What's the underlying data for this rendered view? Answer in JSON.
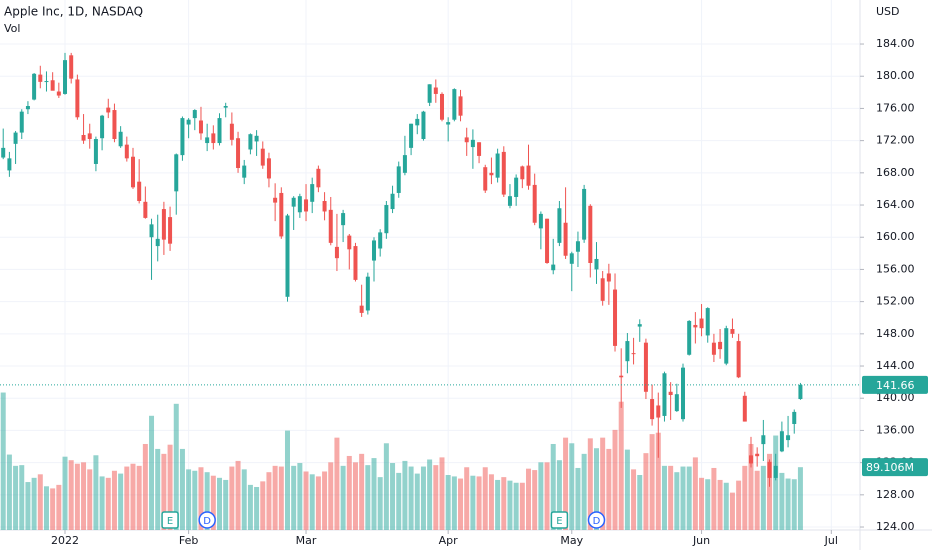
{
  "chart_data": {
    "type": "candlestick",
    "title": "Apple Inc, 1D, NASDAQ",
    "volume_title": "Vol",
    "currency": "USD",
    "open": [
      169.9,
      168.3,
      171.6,
      173.0,
      175.9,
      177.1,
      180.2,
      179.3,
      179.5,
      178.1,
      177.8,
      182.6,
      179.6,
      172.7,
      172.9,
      169.1,
      172.3,
      176.1,
      175.8,
      171.3,
      171.5,
      170.0,
      166.9,
      164.4,
      160.0,
      158.9,
      163.5,
      162.5,
      165.7,
      170.2,
      174.0,
      174.8,
      174.5,
      171.7,
      172.9,
      171.7,
      176.1,
      174.1,
      172.3,
      167.4,
      170.9,
      171.9,
      171.0,
      169.8,
      164.9,
      165.5,
      152.6,
      163.8,
      163.1,
      164.7,
      164.4,
      168.5,
      164.5,
      163.4,
      158.8,
      161.5,
      160.2,
      158.9,
      151.5,
      150.9,
      157.1,
      158.6,
      160.5,
      163.5,
      165.5,
      168.0,
      171.1,
      173.9,
      172.2,
      176.7,
      178.6,
      177.8,
      174.0,
      174.6,
      177.5,
      172.4,
      171.2,
      171.8,
      168.7,
      168.0,
      167.4,
      170.6,
      163.9,
      165.0,
      168.8,
      168.9,
      166.5,
      161.1,
      162.3,
      155.9,
      159.3,
      161.8,
      156.7,
      158.2,
      159.7,
      163.9,
      156.0,
      154.9,
      155.5,
      153.5,
      142.8,
      144.6,
      145.6,
      148.9,
      146.9,
      139.9,
      139.1,
      137.8,
      140.8,
      138.4,
      137.4,
      145.4,
      149.1,
      149.9,
      147.8,
      146.9,
      147.0,
      144.3,
      148.6,
      147.1,
      140.3,
      132.9,
      133.1,
      134.3,
      132.1,
      130.1,
      133.4,
      134.8,
      136.8,
      139.9
    ],
    "high": [
      173.5,
      170.6,
      173.2,
      175.9,
      176.9,
      180.4,
      181.3,
      180.6,
      180.5,
      179.2,
      182.9,
      182.9,
      180.2,
      175.3,
      174.1,
      172.5,
      175.2,
      177.2,
      176.6,
      173.8,
      172.5,
      171.1,
      169.7,
      166.3,
      162.3,
      162.8,
      164.4,
      163.8,
      170.4,
      175.0,
      174.8,
      175.9,
      176.2,
      174.1,
      173.9,
      175.4,
      176.7,
      175.5,
      173.1,
      169.6,
      172.9,
      173.3,
      171.9,
      170.5,
      166.7,
      166.2,
      162.9,
      165.1,
      165.4,
      166.6,
      167.4,
      168.9,
      165.6,
      165.0,
      162.9,
      163.4,
      160.4,
      159.3,
      154.1,
      155.6,
      160.0,
      161.0,
      164.5,
      166.4,
      169.4,
      172.6,
      174.1,
      175.3,
      175.7,
      179.0,
      179.6,
      178.0,
      174.9,
      178.5,
      178.3,
      173.6,
      173.4,
      171.8,
      169.0,
      169.9,
      171.0,
      171.3,
      166.6,
      167.8,
      168.9,
      171.5,
      167.9,
      163.2,
      162.3,
      159.8,
      164.5,
      166.2,
      158.2,
      160.7,
      166.5,
      164.1,
      159.4,
      155.8,
      156.7,
      155.5,
      146.2,
      148.1,
      147.5,
      149.8,
      147.4,
      141.7,
      140.7,
      143.3,
      142.0,
      141.8,
      144.3,
      149.7,
      150.7,
      151.7,
      151.3,
      148.0,
      148.6,
      149.0,
      149.9,
      148.0,
      140.8,
      135.2,
      133.9,
      137.3,
      132.4,
      133.1,
      137.1,
      137.8,
      138.6,
      141.9
    ],
    "low": [
      169.7,
      167.5,
      169.1,
      172.2,
      175.3,
      177.0,
      178.5,
      178.1,
      178.3,
      177.3,
      177.7,
      179.1,
      174.6,
      171.6,
      171.0,
      168.2,
      170.8,
      174.8,
      171.8,
      171.1,
      169.4,
      166.0,
      164.2,
      162.3,
      154.7,
      157.0,
      157.8,
      158.3,
      162.8,
      169.5,
      172.3,
      173.3,
      172.1,
      170.7,
      170.9,
      171.4,
      174.9,
      171.4,
      168.0,
      166.6,
      170.3,
      170.1,
      168.5,
      166.2,
      162.0,
      159.8,
      152.0,
      160.9,
      162.4,
      162.0,
      163.0,
      165.6,
      162.1,
      159.0,
      155.8,
      159.4,
      156.0,
      154.5,
      150.1,
      150.4,
      154.5,
      157.6,
      159.8,
      163.0,
      164.9,
      167.7,
      170.2,
      172.8,
      172.0,
      176.3,
      176.7,
      174.4,
      171.9,
      174.4,
      174.4,
      170.1,
      168.5,
      169.2,
      165.5,
      166.6,
      166.8,
      165.0,
      163.6,
      163.9,
      166.1,
      165.9,
      161.5,
      158.5,
      156.7,
      155.4,
      158.9,
      157.3,
      153.3,
      156.3,
      159.3,
      155.0,
      154.2,
      151.5,
      151.6,
      145.8,
      138.8,
      143.1,
      144.2,
      147.0,
      139.9,
      136.6,
      132.6,
      137.1,
      137.3,
      138.3,
      137.1,
      145.3,
      146.8,
      147.7,
      146.9,
      144.5,
      144.9,
      144.1,
      147.5,
      142.5,
      137.1,
      131.4,
      131.5,
      132.2,
      129.0,
      129.8,
      133.3,
      133.9,
      135.6,
      139.8
    ],
    "close": [
      171.1,
      169.8,
      173.0,
      175.6,
      176.3,
      180.3,
      179.3,
      179.4,
      178.2,
      177.6,
      182.0,
      179.7,
      174.9,
      172.0,
      172.2,
      172.2,
      175.1,
      175.5,
      172.2,
      173.1,
      169.8,
      166.2,
      164.5,
      162.4,
      161.6,
      159.8,
      159.7,
      159.2,
      170.3,
      174.8,
      174.6,
      175.8,
      172.9,
      172.4,
      171.7,
      174.8,
      176.3,
      172.1,
      168.6,
      168.9,
      172.8,
      172.6,
      168.9,
      167.3,
      164.3,
      160.1,
      162.7,
      164.9,
      165.1,
      163.2,
      166.6,
      166.2,
      163.2,
      159.3,
      157.4,
      163.0,
      158.5,
      154.7,
      150.6,
      155.1,
      159.6,
      160.6,
      164.0,
      165.4,
      168.8,
      170.2,
      174.1,
      174.7,
      175.6,
      179.0,
      177.8,
      174.6,
      174.3,
      178.4,
      175.1,
      171.8,
      172.1,
      170.1,
      165.8,
      167.7,
      170.4,
      165.3,
      165.1,
      167.4,
      167.2,
      166.4,
      161.8,
      162.9,
      156.8,
      156.6,
      163.6,
      157.7,
      158.0,
      159.5,
      166.0,
      156.8,
      157.3,
      152.1,
      154.5,
      146.5,
      142.6,
      147.1,
      145.5,
      149.2,
      140.8,
      137.4,
      137.6,
      143.1,
      140.4,
      140.5,
      143.8,
      149.6,
      148.8,
      148.7,
      151.2,
      145.4,
      146.1,
      148.7,
      148.0,
      142.6,
      137.1,
      131.9,
      132.8,
      135.4,
      130.1,
      131.6,
      135.9,
      135.4,
      138.3,
      141.66
    ],
    "volume": [
      195,
      107,
      91,
      92,
      68,
      74,
      79,
      62,
      59,
      64,
      104,
      99,
      94,
      96,
      86,
      106,
      76,
      74,
      84,
      80,
      90,
      94,
      91,
      122,
      162,
      115,
      108,
      121,
      179,
      115,
      86,
      84,
      89,
      82,
      77,
      74,
      71,
      90,
      98,
      86,
      64,
      61,
      69,
      82,
      91,
      90,
      141,
      91,
      95,
      83,
      79,
      76,
      83,
      96,
      131,
      91,
      105,
      96,
      108,
      92,
      102,
      75,
      123,
      95,
      81,
      98,
      90,
      80,
      90,
      100,
      92,
      103,
      78,
      76,
      73,
      89,
      77,
      76,
      89,
      79,
      71,
      75,
      70,
      67,
      67,
      87,
      85,
      96,
      96,
      122,
      99,
      131,
      123,
      88,
      108,
      130,
      116,
      131,
      115,
      142,
      182,
      114,
      86,
      78,
      109,
      136,
      138,
      91,
      91,
      82,
      90,
      90,
      103,
      74,
      72,
      88,
      71,
      67,
      53,
      70,
      91,
      122,
      84,
      91,
      108,
      134,
      81,
      73,
      72,
      89.106
    ],
    "volume_last_label": "89.106M",
    "up_color": "#26a69a",
    "down_color": "#ef5350",
    "xlim": [
      -0.52,
      138.64
    ],
    "xticks": [
      {
        "value": 10,
        "label": "2022"
      },
      {
        "value": 30,
        "label": "Feb"
      },
      {
        "value": 49,
        "label": "Mar"
      },
      {
        "value": 72,
        "label": "Apr"
      },
      {
        "value": 92,
        "label": "May"
      },
      {
        "value": 113,
        "label": "Jun"
      },
      {
        "value": 134,
        "label": "Jul"
      }
    ],
    "ylim": [
      123.63,
      189.47
    ],
    "yticks": [
      {
        "value": 124,
        "label": "124.00"
      },
      {
        "value": 128,
        "label": "128.00"
      },
      {
        "value": 132,
        "label": "132.00"
      },
      {
        "value": 136,
        "label": "136.00"
      },
      {
        "value": 140,
        "label": "140.00"
      },
      {
        "value": 144,
        "label": "144.00"
      },
      {
        "value": 148,
        "label": "148.00"
      },
      {
        "value": 152,
        "label": "152.00"
      },
      {
        "value": 156,
        "label": "156.00"
      },
      {
        "value": 160,
        "label": "160.00"
      },
      {
        "value": 164,
        "label": "164.00"
      },
      {
        "value": 168,
        "label": "168.00"
      },
      {
        "value": 172,
        "label": "172.00"
      },
      {
        "value": 176,
        "label": "176.00"
      },
      {
        "value": 180,
        "label": "180.00"
      },
      {
        "value": 184,
        "label": "184.00"
      }
    ],
    "vlim": [
      0,
      200
    ],
    "grid": true,
    "events": [
      {
        "x": 27,
        "label": "E"
      },
      {
        "x": 33,
        "label": "D"
      },
      {
        "x": 90,
        "label": "E"
      },
      {
        "x": 96,
        "label": "D"
      }
    ]
  }
}
